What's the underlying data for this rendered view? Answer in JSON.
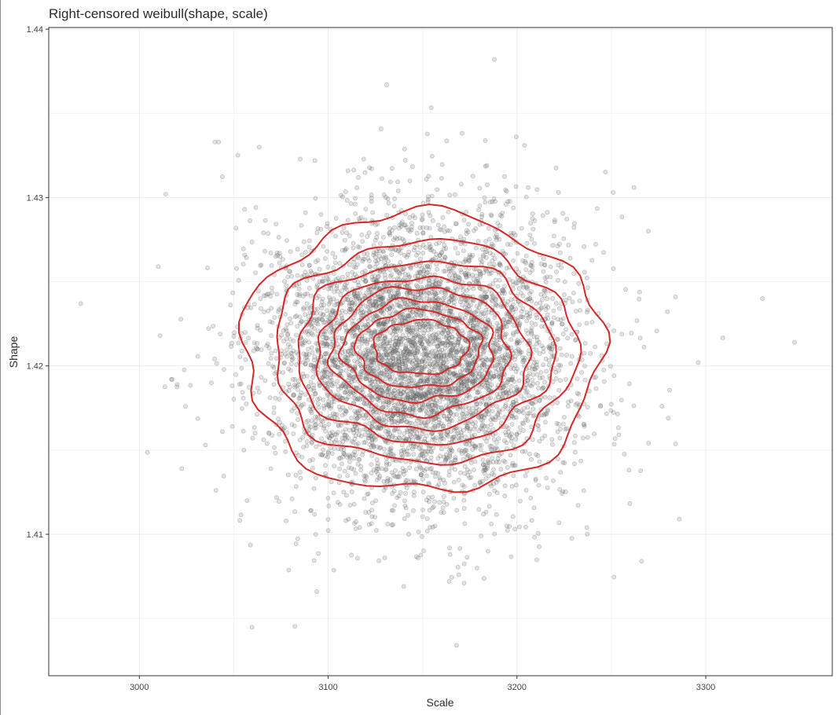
{
  "chart_data": {
    "type": "scatter",
    "title": "Right-censored weibull(shape, scale)",
    "xlabel": "Scale",
    "ylabel": "Shape",
    "xlim": [
      2952,
      3367
    ],
    "ylim": [
      1.4016,
      1.4401
    ],
    "x_ticks": [
      3000,
      3100,
      3200,
      3300
    ],
    "y_ticks": [
      1.41,
      1.42,
      1.43,
      1.44
    ],
    "x_tick_labels": [
      "3000",
      "3100",
      "3200",
      "3300"
    ],
    "y_tick_labels": [
      "1.41",
      "1.42",
      "1.43",
      "1.44"
    ],
    "grid": true,
    "legend": "none",
    "point_color": "#595959",
    "contour_color": "#d62728",
    "series": [
      {
        "kind": "points",
        "x": [
          2969,
          3014,
          3040,
          3042,
          3131,
          3188,
          3330,
          3347,
          3266,
          3286,
          3140,
          3172,
          3168,
          3094,
          3262,
          3011,
          3296,
          3017,
          3093,
          3204,
          3116,
          3184,
          3010,
          3035,
          3284,
          3237,
          3044,
          3251,
          3130,
          3222
        ],
        "y": [
          1.4237,
          1.4302,
          1.4333,
          1.4333,
          1.4367,
          1.4382,
          1.424,
          1.4214,
          1.4084,
          1.4109,
          1.4069,
          1.4071,
          1.4034,
          1.4066,
          1.4306,
          1.4218,
          1.4202,
          1.4192,
          1.4322,
          1.4331,
          1.4312,
          1.4319,
          1.4259,
          1.4153,
          1.4241,
          1.4104,
          1.4161,
          1.4303,
          1.4086,
          1.4303
        ]
      },
      {
        "kind": "density-cloud",
        "n": 5200,
        "center": [
          3148,
          1.4205
        ],
        "sd": [
          40,
          0.0042
        ]
      }
    ],
    "contours": [
      {
        "level": 1,
        "center": [
          3150,
          1.4208
        ],
        "radius": [
          95,
          0.0083
        ]
      },
      {
        "level": 2,
        "center": [
          3151,
          1.4208
        ],
        "radius": [
          80,
          0.0066
        ]
      },
      {
        "level": 3,
        "center": [
          3151,
          1.4208
        ],
        "radius": [
          68,
          0.0054
        ]
      },
      {
        "level": 4,
        "center": [
          3150,
          1.4208
        ],
        "radius": [
          56,
          0.0045
        ]
      },
      {
        "level": 5,
        "center": [
          3149,
          1.4209
        ],
        "radius": [
          47,
          0.0038
        ]
      },
      {
        "level": 6,
        "center": [
          3148,
          1.4209
        ],
        "radius": [
          40,
          0.003
        ]
      },
      {
        "level": 7,
        "center": [
          3148,
          1.421
        ],
        "radius": [
          33,
          0.0023
        ]
      },
      {
        "level": 8,
        "center": [
          3149,
          1.4211
        ],
        "radius": [
          25,
          0.0016
        ]
      }
    ]
  }
}
